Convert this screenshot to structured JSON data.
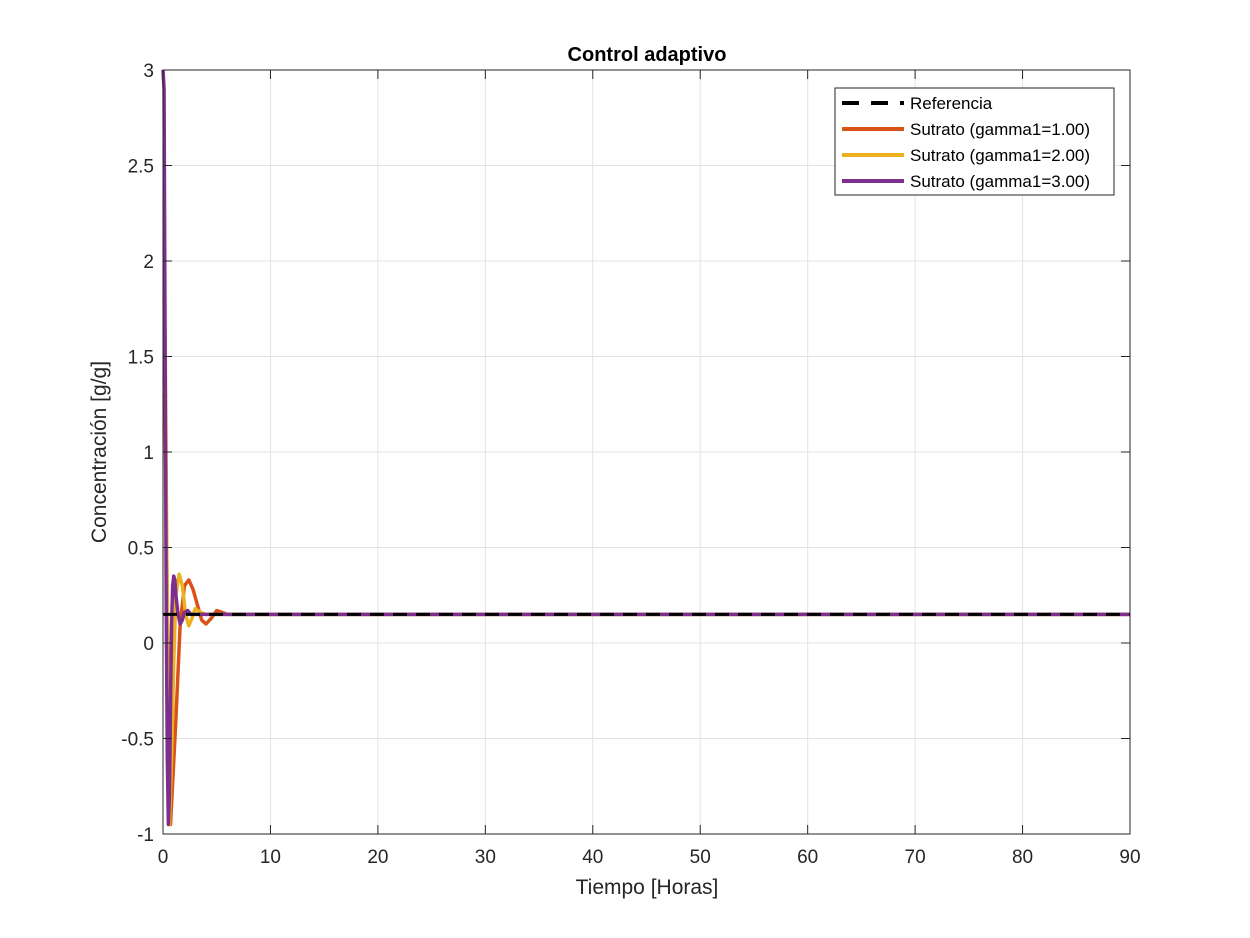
{
  "chart_data": {
    "type": "line",
    "title": "Control adaptivo",
    "xlabel": "Tiempo [Horas]",
    "ylabel": "Concentración [g/g]",
    "xlim": [
      0,
      90
    ],
    "ylim": [
      -1,
      3
    ],
    "xticks": [
      0,
      10,
      20,
      30,
      40,
      50,
      60,
      70,
      80,
      90
    ],
    "yticks": [
      -1,
      -0.5,
      0,
      0.5,
      1,
      1.5,
      2,
      2.5,
      3
    ],
    "xtick_labels": [
      "0",
      "10",
      "20",
      "30",
      "40",
      "50",
      "60",
      "70",
      "80",
      "90"
    ],
    "ytick_labels": [
      "-1",
      "-0.5",
      "0",
      "0.5",
      "1",
      "1.5",
      "2",
      "2.5",
      "3"
    ],
    "grid": true,
    "legend_position": "top-right",
    "series": [
      {
        "name": "Referencia",
        "color": "#000000",
        "dash": "dashed",
        "x": [
          0,
          90
        ],
        "y": [
          0.15,
          0.15
        ]
      },
      {
        "name": "Sutrato (gamma1=1.00)",
        "color": "#D95319",
        "dash": "solid",
        "x": [
          0,
          0.1,
          0.2,
          0.3,
          0.4,
          0.5,
          0.6,
          0.7,
          1.2,
          1.6,
          2.0,
          2.4,
          2.8,
          3.2,
          3.6,
          4.0,
          4.5,
          5.0,
          5.5,
          6.0,
          7.0,
          90
        ],
        "y": [
          1.3,
          1.3,
          1.2,
          0.7,
          0.2,
          -0.4,
          -0.9,
          -0.95,
          -0.4,
          0.1,
          0.3,
          0.33,
          0.28,
          0.2,
          0.12,
          0.1,
          0.13,
          0.17,
          0.16,
          0.15,
          0.15,
          0.15
        ]
      },
      {
        "name": "Sutrato (gamma1=2.00)",
        "color": "#EDB120",
        "dash": "solid",
        "x": [
          0,
          0.1,
          0.2,
          0.3,
          0.4,
          0.5,
          0.6,
          0.8,
          1.0,
          1.2,
          1.5,
          1.8,
          2.1,
          2.4,
          2.7,
          3.0,
          3.5,
          4.0,
          5.0,
          90
        ],
        "y": [
          1.8,
          1.8,
          1.6,
          0.9,
          0.1,
          -0.6,
          -0.95,
          -0.6,
          -0.1,
          0.25,
          0.36,
          0.3,
          0.15,
          0.09,
          0.13,
          0.18,
          0.16,
          0.15,
          0.15,
          0.15
        ]
      },
      {
        "name": "Sutrato (gamma1=3.00)",
        "color": "#7E2F8E",
        "dash": "solid",
        "x": [
          0,
          0.1,
          0.2,
          0.3,
          0.4,
          0.5,
          0.6,
          0.7,
          0.8,
          0.9,
          1.0,
          1.1,
          1.2,
          1.4,
          1.6,
          1.8,
          2.0,
          2.3,
          2.6,
          3.0,
          4.0,
          90
        ],
        "y": [
          3.0,
          2.9,
          1.5,
          0.2,
          -0.6,
          -0.95,
          -0.8,
          -0.3,
          0.1,
          0.3,
          0.35,
          0.33,
          0.25,
          0.15,
          0.1,
          0.12,
          0.16,
          0.17,
          0.15,
          0.15,
          0.15,
          0.15
        ]
      }
    ]
  }
}
